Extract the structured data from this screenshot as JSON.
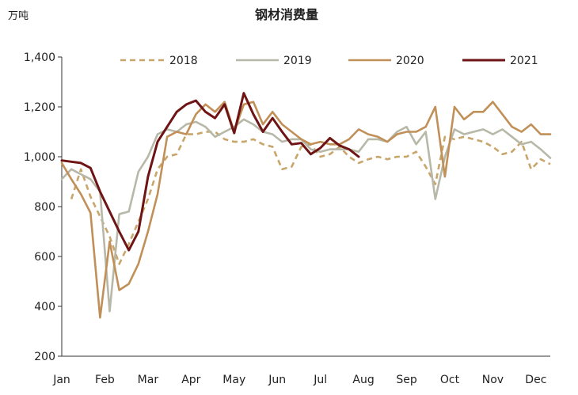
{
  "chart_data": {
    "type": "line",
    "title": "钢材消费量",
    "ylabel": "万吨",
    "xlabel": "",
    "ylim": [
      200,
      1400
    ],
    "yticks": [
      {
        "value": 200,
        "label": "200"
      },
      {
        "value": 400,
        "label": "400"
      },
      {
        "value": 600,
        "label": "600"
      },
      {
        "value": 800,
        "label": "800"
      },
      {
        "value": 1000,
        "label": "1,000"
      },
      {
        "value": 1200,
        "label": "1,200"
      },
      {
        "value": 1400,
        "label": "1,400"
      }
    ],
    "xlim": [
      1,
      52
    ],
    "month_labels": [
      {
        "label": "Jan",
        "week": 1
      },
      {
        "label": "Feb",
        "week": 5.5
      },
      {
        "label": "Mar",
        "week": 10
      },
      {
        "label": "Apr",
        "week": 14.5
      },
      {
        "label": "May",
        "week": 19
      },
      {
        "label": "Jun",
        "week": 23.5
      },
      {
        "label": "Jul",
        "week": 28
      },
      {
        "label": "Aug",
        "week": 32.5
      },
      {
        "label": "Sep",
        "week": 37
      },
      {
        "label": "Oct",
        "week": 41.5
      },
      {
        "label": "Nov",
        "week": 46
      },
      {
        "label": "Dec",
        "week": 50.5
      }
    ],
    "legend_position": "top",
    "series": [
      {
        "name": "2018",
        "color": "#C8A56B",
        "dashed": true,
        "x": [
          2,
          3,
          4,
          5,
          6,
          7,
          8,
          9,
          10,
          11,
          12,
          13,
          14,
          15,
          16,
          17,
          18,
          19,
          20,
          21,
          22,
          23,
          24,
          25,
          26,
          27,
          28,
          29,
          30,
          31,
          32,
          33,
          34,
          35,
          36,
          37,
          38,
          39,
          40,
          41,
          42,
          43,
          44,
          45,
          46,
          47,
          48,
          49,
          50,
          51,
          52
        ],
        "values": [
          830,
          950,
          840,
          760,
          680,
          570,
          650,
          740,
          830,
          950,
          1000,
          1010,
          1090,
          1090,
          1100,
          1100,
          1070,
          1060,
          1060,
          1070,
          1050,
          1040,
          950,
          960,
          1040,
          1050,
          1000,
          1010,
          1040,
          1000,
          975,
          990,
          1000,
          990,
          1000,
          1000,
          1020,
          960,
          890,
          1080,
          1070,
          1080,
          1070,
          1060,
          1040,
          1010,
          1020,
          1060,
          950,
          990,
          970
        ]
      },
      {
        "name": "2019",
        "color": "#B8B8A8",
        "dashed": false,
        "x": [
          1,
          2,
          3,
          4,
          5,
          6,
          7,
          8,
          9,
          10,
          11,
          12,
          13,
          14,
          15,
          16,
          17,
          18,
          19,
          20,
          21,
          22,
          23,
          24,
          25,
          26,
          27,
          28,
          29,
          30,
          31,
          32,
          33,
          34,
          35,
          36,
          37,
          38,
          39,
          40,
          41,
          42,
          43,
          44,
          45,
          46,
          47,
          48,
          49,
          50,
          51,
          52
        ],
        "values": [
          910,
          950,
          930,
          910,
          860,
          380,
          770,
          780,
          940,
          1000,
          1090,
          1110,
          1100,
          1130,
          1140,
          1120,
          1080,
          1100,
          1120,
          1150,
          1130,
          1100,
          1090,
          1060,
          1070,
          1070,
          1030,
          1020,
          1030,
          1030,
          1030,
          1020,
          1070,
          1070,
          1060,
          1100,
          1120,
          1050,
          1100,
          830,
          1000,
          1110,
          1090,
          1100,
          1110,
          1090,
          1110,
          1080,
          1050,
          1060,
          1030,
          995
        ]
      },
      {
        "name": "2020",
        "color": "#C09058",
        "dashed": false,
        "x": [
          1,
          2,
          3,
          4,
          5,
          6,
          7,
          8,
          9,
          10,
          11,
          12,
          13,
          14,
          15,
          16,
          17,
          18,
          19,
          20,
          21,
          22,
          23,
          24,
          25,
          26,
          27,
          28,
          29,
          30,
          31,
          32,
          33,
          34,
          35,
          36,
          37,
          38,
          39,
          40,
          41,
          42,
          43,
          44,
          45,
          46,
          47,
          48,
          49,
          50,
          51,
          52
        ],
        "values": [
          975,
          910,
          850,
          775,
          355,
          660,
          465,
          490,
          570,
          700,
          850,
          1080,
          1100,
          1090,
          1170,
          1210,
          1180,
          1220,
          1100,
          1210,
          1220,
          1130,
          1180,
          1130,
          1100,
          1070,
          1050,
          1060,
          1050,
          1050,
          1070,
          1110,
          1090,
          1080,
          1060,
          1090,
          1100,
          1100,
          1120,
          1200,
          920,
          1200,
          1150,
          1180,
          1180,
          1220,
          1170,
          1120,
          1100,
          1130,
          1090,
          1090
        ]
      },
      {
        "name": "2021",
        "color": "#6E1414",
        "dashed": false,
        "x": [
          1,
          2,
          3,
          4,
          5,
          6,
          7,
          8,
          9,
          10,
          11,
          12,
          13,
          14,
          15,
          16,
          17,
          18,
          19,
          20,
          21,
          22,
          23,
          24,
          25,
          26,
          27,
          28,
          29,
          30,
          31,
          32
        ],
        "values": [
          985,
          980,
          975,
          955,
          860,
          780,
          700,
          625,
          700,
          920,
          1060,
          1120,
          1180,
          1210,
          1225,
          1180,
          1155,
          1210,
          1095,
          1255,
          1170,
          1100,
          1155,
          1100,
          1050,
          1055,
          1010,
          1035,
          1075,
          1045,
          1030,
          1000
        ]
      }
    ]
  }
}
